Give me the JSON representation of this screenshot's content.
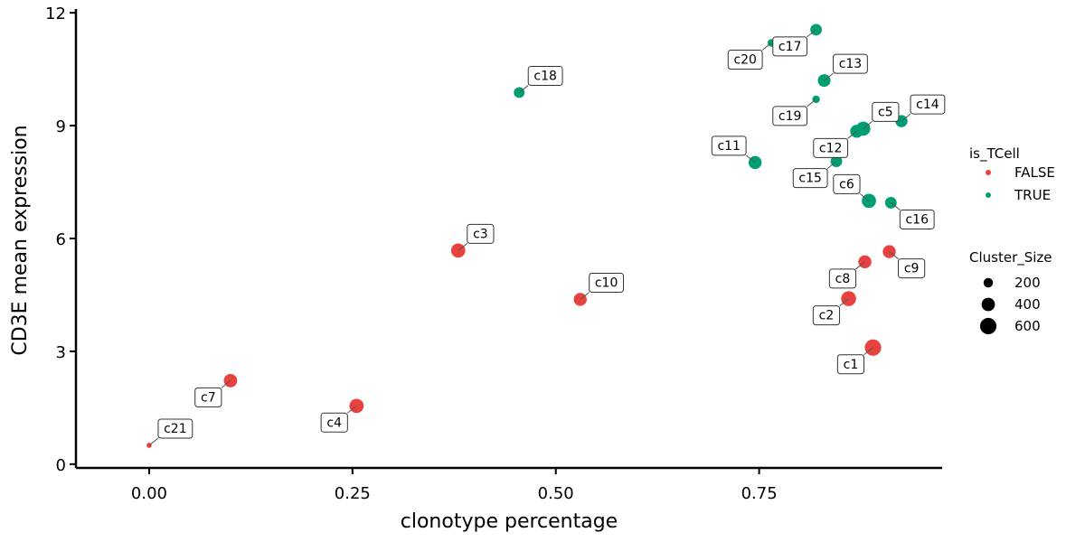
{
  "chart_data": {
    "type": "scatter",
    "xlabel": "clonotype percentage",
    "ylabel": "CD3E mean expression",
    "xlim": [
      -0.09,
      0.975
    ],
    "ylim": [
      -0.1,
      12.1
    ],
    "x_ticks": [
      0.0,
      0.25,
      0.5,
      0.75
    ],
    "x_tick_labels": [
      "0.00",
      "0.25",
      "0.50",
      "0.75"
    ],
    "y_ticks": [
      0,
      3,
      6,
      9,
      12
    ],
    "y_tick_labels": [
      "0",
      "3",
      "6",
      "9",
      "12"
    ],
    "grid": false,
    "legend_position": "right",
    "colors": {
      "FALSE": "#E8423F",
      "TRUE": "#009E73"
    },
    "color_legend": {
      "title": "is_TCell",
      "entries": [
        {
          "label": "FALSE",
          "key": "FALSE"
        },
        {
          "label": "TRUE",
          "key": "TRUE"
        }
      ]
    },
    "size_legend": {
      "title": "Cluster_Size",
      "entries": [
        {
          "label": "200",
          "value": 200
        },
        {
          "label": "400",
          "value": 400
        },
        {
          "label": "600",
          "value": 600
        }
      ]
    },
    "points": [
      {
        "label": "c1",
        "x": 0.89,
        "y": 3.1,
        "size": 600,
        "is_TCell": "FALSE",
        "label_pos": "bottom-left"
      },
      {
        "label": "c2",
        "x": 0.86,
        "y": 4.4,
        "size": 500,
        "is_TCell": "FALSE",
        "label_pos": "bottom-left"
      },
      {
        "label": "c3",
        "x": 0.38,
        "y": 5.68,
        "size": 450,
        "is_TCell": "FALSE",
        "label_pos": "top-right"
      },
      {
        "label": "c4",
        "x": 0.255,
        "y": 1.55,
        "size": 450,
        "is_TCell": "FALSE",
        "label_pos": "bottom-left"
      },
      {
        "label": "c5",
        "x": 0.878,
        "y": 8.92,
        "size": 450,
        "is_TCell": "TRUE",
        "label_pos": "top-right"
      },
      {
        "label": "c6",
        "x": 0.885,
        "y": 7.0,
        "size": 450,
        "is_TCell": "TRUE",
        "label_pos": "top-left"
      },
      {
        "label": "c7",
        "x": 0.1,
        "y": 2.22,
        "size": 400,
        "is_TCell": "FALSE",
        "label_pos": "bottom-left"
      },
      {
        "label": "c8",
        "x": 0.88,
        "y": 5.38,
        "size": 380,
        "is_TCell": "FALSE",
        "label_pos": "bottom-left"
      },
      {
        "label": "c9",
        "x": 0.91,
        "y": 5.65,
        "size": 380,
        "is_TCell": "FALSE",
        "label_pos": "bottom-right"
      },
      {
        "label": "c10",
        "x": 0.53,
        "y": 4.38,
        "size": 380,
        "is_TCell": "FALSE",
        "label_pos": "top-right"
      },
      {
        "label": "c11",
        "x": 0.745,
        "y": 8.02,
        "size": 380,
        "is_TCell": "TRUE",
        "label_pos": "top-left"
      },
      {
        "label": "c12",
        "x": 0.87,
        "y": 8.85,
        "size": 380,
        "is_TCell": "TRUE",
        "label_pos": "bottom-left"
      },
      {
        "label": "c13",
        "x": 0.83,
        "y": 10.2,
        "size": 360,
        "is_TCell": "TRUE",
        "label_pos": "top-right"
      },
      {
        "label": "c14",
        "x": 0.925,
        "y": 9.12,
        "size": 330,
        "is_TCell": "TRUE",
        "label_pos": "top-right"
      },
      {
        "label": "c15",
        "x": 0.845,
        "y": 8.05,
        "size": 300,
        "is_TCell": "TRUE",
        "label_pos": "bottom-left"
      },
      {
        "label": "c16",
        "x": 0.912,
        "y": 6.95,
        "size": 300,
        "is_TCell": "TRUE",
        "label_pos": "bottom-right"
      },
      {
        "label": "c17",
        "x": 0.82,
        "y": 11.55,
        "size": 300,
        "is_TCell": "TRUE",
        "label_pos": "bottom-left"
      },
      {
        "label": "c18",
        "x": 0.455,
        "y": 9.88,
        "size": 260,
        "is_TCell": "TRUE",
        "label_pos": "top-right"
      },
      {
        "label": "c19",
        "x": 0.82,
        "y": 9.7,
        "size": 130,
        "is_TCell": "TRUE",
        "label_pos": "bottom-left"
      },
      {
        "label": "c20",
        "x": 0.765,
        "y": 11.2,
        "size": 130,
        "is_TCell": "TRUE",
        "label_pos": "bottom-left"
      },
      {
        "label": "c21",
        "x": 0.0,
        "y": 0.5,
        "size": 60,
        "is_TCell": "FALSE",
        "label_pos": "top-right"
      }
    ]
  }
}
